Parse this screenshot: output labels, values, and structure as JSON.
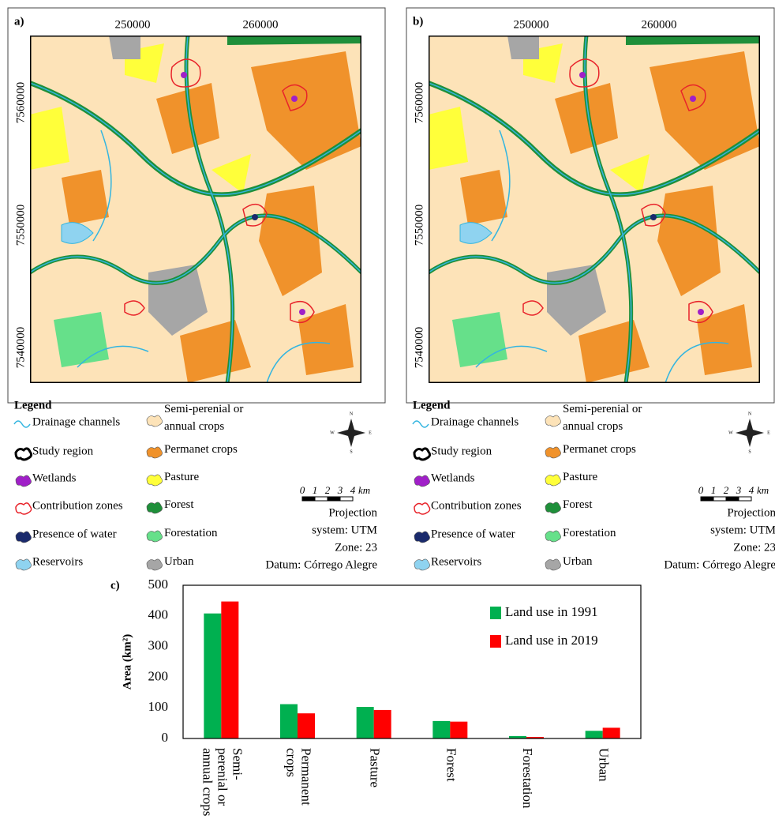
{
  "maps": [
    {
      "panel": "a)",
      "x_ticks": [
        250000,
        260000
      ],
      "y_ticks": [
        7560000,
        7550000,
        7540000
      ]
    },
    {
      "panel": "b)",
      "x_ticks": [
        250000,
        260000
      ],
      "y_ticks": [
        7560000,
        7550000,
        7540000
      ]
    }
  ],
  "legend": {
    "title": "Legend",
    "left": [
      {
        "label": "Drainage channels",
        "color": "#33b5e0",
        "icon": "line"
      },
      {
        "label": "Study region",
        "color": "#000000",
        "icon": "outline"
      },
      {
        "label": "Wetlands",
        "color": "#a020c8",
        "icon": "fill"
      },
      {
        "label": "Contribution zones",
        "color": "#e8232a",
        "icon": "outline"
      },
      {
        "label": "Presence of water",
        "color": "#1a2a6c",
        "icon": "fill"
      },
      {
        "label": "Reservoirs",
        "color": "#8fd3f0",
        "icon": "fill"
      }
    ],
    "right": [
      {
        "label": "Semi-perenial or annual crops",
        "color": "#fde3b8",
        "icon": "fill"
      },
      {
        "label": "Permanet crops",
        "color": "#f0922b",
        "icon": "fill"
      },
      {
        "label": "Pasture",
        "color": "#ffff3a",
        "icon": "fill"
      },
      {
        "label": "Forest",
        "color": "#1f8f3a",
        "icon": "fill"
      },
      {
        "label": "Forestation",
        "color": "#66e08a",
        "icon": "fill"
      },
      {
        "label": "Urban",
        "color": "#a6a6a6",
        "icon": "fill"
      }
    ]
  },
  "compass": [
    "N",
    "E",
    "S",
    "W"
  ],
  "scale": {
    "ticks": [
      0,
      1,
      2,
      3,
      4
    ],
    "unit": "km"
  },
  "projection": [
    "Projection",
    "system: UTM",
    "Zone: 23",
    "Datum: Córrego Alegre"
  ],
  "chart_data": {
    "type": "bar",
    "panel": "c)",
    "y_label": "Area (km²)",
    "categories": [
      "Semi-perenial or annual crops",
      "Permanent crops",
      "Pasture",
      "Forest",
      "Forestation",
      "Urban"
    ],
    "series": [
      {
        "name": "Land use in 1991",
        "color": "#00b050",
        "values": [
          408,
          112,
          103,
          57,
          8,
          25
        ]
      },
      {
        "name": "Land use in 2019",
        "color": "#ff0000",
        "values": [
          447,
          82,
          93,
          55,
          5,
          35
        ]
      }
    ],
    "ylim": [
      0,
      500
    ],
    "yticks": [
      0,
      100,
      200,
      300,
      400,
      500
    ],
    "grid": false
  }
}
